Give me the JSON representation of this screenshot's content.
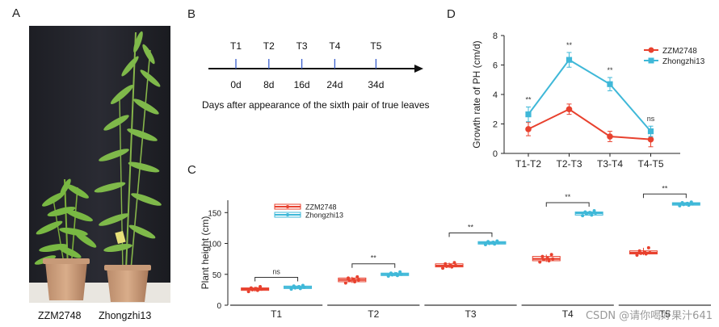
{
  "panel_labels": {
    "a": "A",
    "b": "B",
    "c": "C",
    "d": "D"
  },
  "photo": {
    "left_label": "ZZM2748",
    "right_label": "Zhongzhi13"
  },
  "timeline": {
    "points": [
      {
        "label": "T1",
        "day": 0,
        "day_label": "0d"
      },
      {
        "label": "T2",
        "day": 8,
        "day_label": "8d"
      },
      {
        "label": "T3",
        "day": 16,
        "day_label": "16d"
      },
      {
        "label": "T4",
        "day": 24,
        "day_label": "24d"
      },
      {
        "label": "T5",
        "day": 34,
        "day_label": "34d"
      }
    ],
    "caption": "Days after appearance of the sixth pair of true leaves"
  },
  "chart_data": [
    {
      "id": "D",
      "type": "line",
      "title": "",
      "xlabel": "",
      "ylabel": "Growth rate of PH (cm/d)",
      "categories": [
        "T1-T2",
        "T2-T3",
        "T3-T4",
        "T4-T5"
      ],
      "ylim": [
        0,
        8
      ],
      "yticks": [
        0,
        2,
        4,
        6,
        8
      ],
      "series": [
        {
          "name": "ZZM2748",
          "color": "#e8412e",
          "marker": "circle",
          "values": [
            1.65,
            3.0,
            1.15,
            0.95
          ],
          "errors": [
            0.45,
            0.35,
            0.35,
            0.5
          ]
        },
        {
          "name": "Zhongzhi13",
          "color": "#3fb8d8",
          "marker": "square",
          "values": [
            2.65,
            6.35,
            4.7,
            1.5
          ],
          "errors": [
            0.5,
            0.5,
            0.45,
            0.35
          ]
        }
      ],
      "significance": [
        "**",
        "**",
        "**",
        "ns"
      ],
      "legend": "top-right"
    },
    {
      "id": "C",
      "type": "boxplot",
      "title": "",
      "xlabel": "",
      "ylabel": "Plant height (cm)",
      "categories": [
        "T1",
        "T2",
        "T3",
        "T4",
        "T5"
      ],
      "ylim": [
        0,
        170
      ],
      "yticks": [
        0,
        50,
        100,
        150
      ],
      "series": [
        {
          "name": "ZZM2748",
          "color": "#e8412e",
          "medians": [
            26,
            41,
            64,
            75,
            85
          ],
          "points": [
            [
              22,
              24,
              25,
              26,
              27,
              28,
              30
            ],
            [
              36,
              38,
              40,
              41,
              42,
              44,
              46
            ],
            [
              60,
              62,
              63,
              64,
              65,
              67,
              69
            ],
            [
              70,
              72,
              74,
              75,
              76,
              79,
              82
            ],
            [
              81,
              83,
              84,
              85,
              86,
              88,
              93
            ]
          ]
        },
        {
          "name": "Zhongzhi13",
          "color": "#3fb8d8",
          "medians": [
            29,
            50,
            101,
            149,
            164
          ],
          "points": [
            [
              26,
              27,
              28,
              29,
              30,
              31,
              32
            ],
            [
              47,
              48,
              49,
              50,
              51,
              52,
              54
            ],
            [
              98,
              99,
              100,
              101,
              102,
              103,
              104
            ],
            [
              145,
              146,
              148,
              149,
              150,
              151,
              153
            ],
            [
              161,
              162,
              163,
              164,
              165,
              166,
              167
            ]
          ]
        }
      ],
      "significance": [
        "ns",
        "**",
        "**",
        "**",
        "**"
      ],
      "legend": "top-left"
    }
  ],
  "watermark": "CSDN @请你喝好果汁641"
}
